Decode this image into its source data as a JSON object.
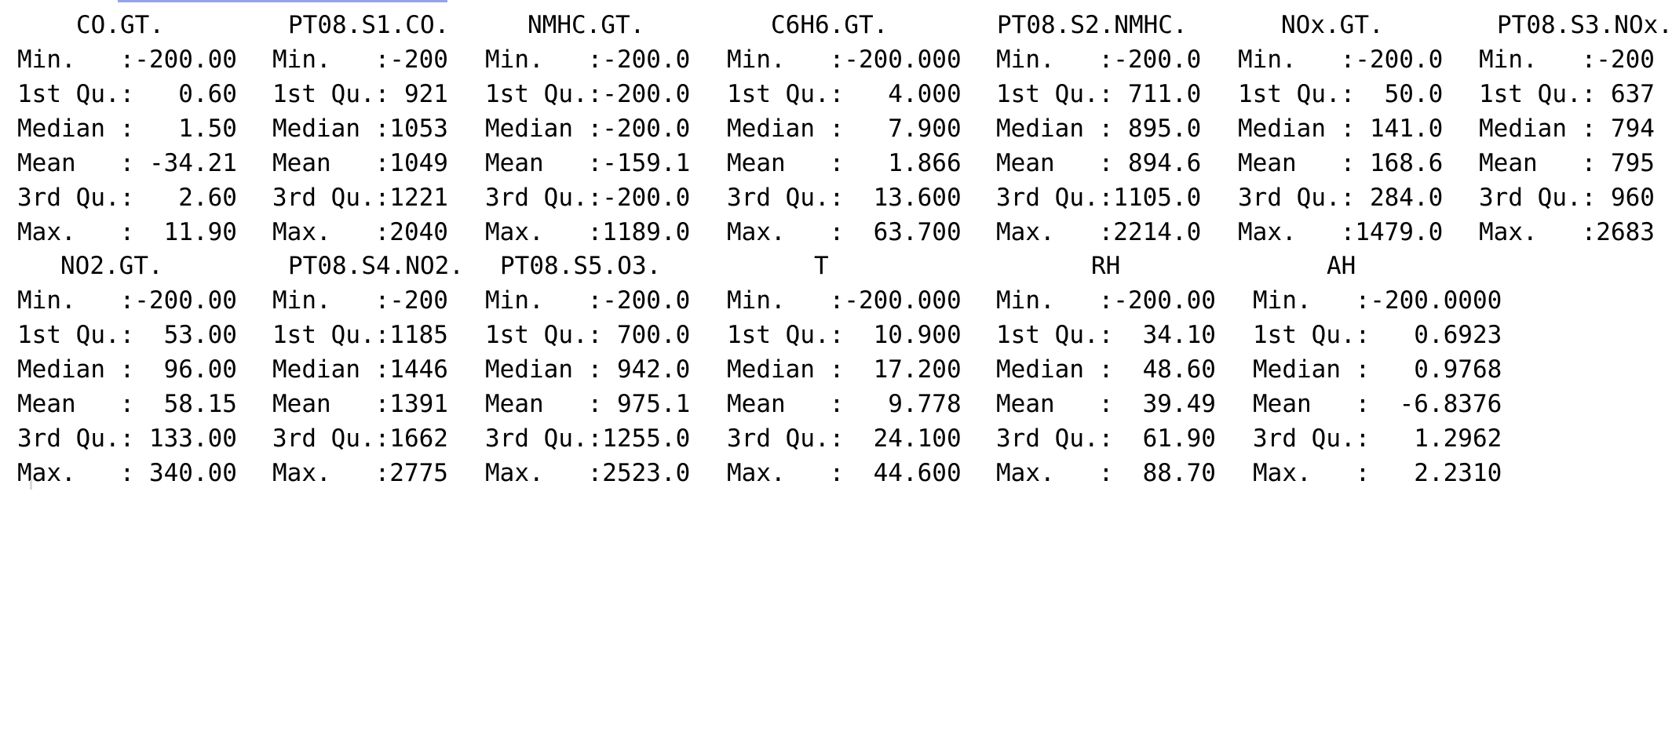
{
  "output": {
    "block1": {
      "headers": [
        "CO.GT.",
        "PT08.S1.CO.",
        "NMHC.GT.",
        "C6H6.GT.",
        "PT08.S2.NMHC.",
        "NOx.GT.",
        "PT08.S3.NOx."
      ],
      "rows": [
        [
          "Min.   :-200.00",
          "Min.   :-200",
          "Min.   :-200.0",
          "Min.   :-200.000",
          "Min.   :-200.0",
          "Min.   :-200.0",
          "Min.   :-200"
        ],
        [
          "1st Qu.:   0.60",
          "1st Qu.: 921",
          "1st Qu.:-200.0",
          "1st Qu.:   4.000",
          "1st Qu.: 711.0",
          "1st Qu.:  50.0",
          "1st Qu.: 637"
        ],
        [
          "Median :   1.50",
          "Median :1053",
          "Median :-200.0",
          "Median :   7.900",
          "Median : 895.0",
          "Median : 141.0",
          "Median : 794"
        ],
        [
          "Mean   : -34.21",
          "Mean   :1049",
          "Mean   :-159.1",
          "Mean   :   1.866",
          "Mean   : 894.6",
          "Mean   : 168.6",
          "Mean   : 795"
        ],
        [
          "3rd Qu.:   2.60",
          "3rd Qu.:1221",
          "3rd Qu.:-200.0",
          "3rd Qu.:  13.600",
          "3rd Qu.:1105.0",
          "3rd Qu.: 284.0",
          "3rd Qu.: 960"
        ],
        [
          "Max.   :  11.90",
          "Max.   :2040",
          "Max.   :1189.0",
          "Max.   :  63.700",
          "Max.   :2214.0",
          "Max.   :1479.0",
          "Max.   :2683"
        ]
      ]
    },
    "block2": {
      "headers": [
        "NO2.GT.",
        "PT08.S4.NO2.",
        "PT08.S5.O3.",
        "T",
        "RH",
        "AH"
      ],
      "rows": [
        [
          "Min.   :-200.00",
          "Min.   :-200",
          "Min.   :-200.0",
          "Min.   :-200.000",
          "Min.   :-200.00",
          "Min.   :-200.0000"
        ],
        [
          "1st Qu.:  53.00",
          "1st Qu.:1185",
          "1st Qu.: 700.0",
          "1st Qu.:  10.900",
          "1st Qu.:  34.10",
          "1st Qu.:   0.6923"
        ],
        [
          "Median :  96.00",
          "Median :1446",
          "Median : 942.0",
          "Median :  17.200",
          "Median :  48.60",
          "Median :   0.9768"
        ],
        [
          "Mean   :  58.15",
          "Mean   :1391",
          "Mean   : 975.1",
          "Mean   :   9.778",
          "Mean   :  39.49",
          "Mean   :  -6.8376"
        ],
        [
          "3rd Qu.: 133.00",
          "3rd Qu.:1662",
          "3rd Qu.:1255.0",
          "3rd Qu.:  24.100",
          "3rd Qu.:  61.90",
          "3rd Qu.:   1.2962"
        ],
        [
          "Max.   : 340.00",
          "Max.   :2775",
          "Max.   :2523.0",
          "Max.   :  44.600",
          "Max.   :  88.70",
          "Max.   :   2.2310"
        ]
      ]
    }
  }
}
